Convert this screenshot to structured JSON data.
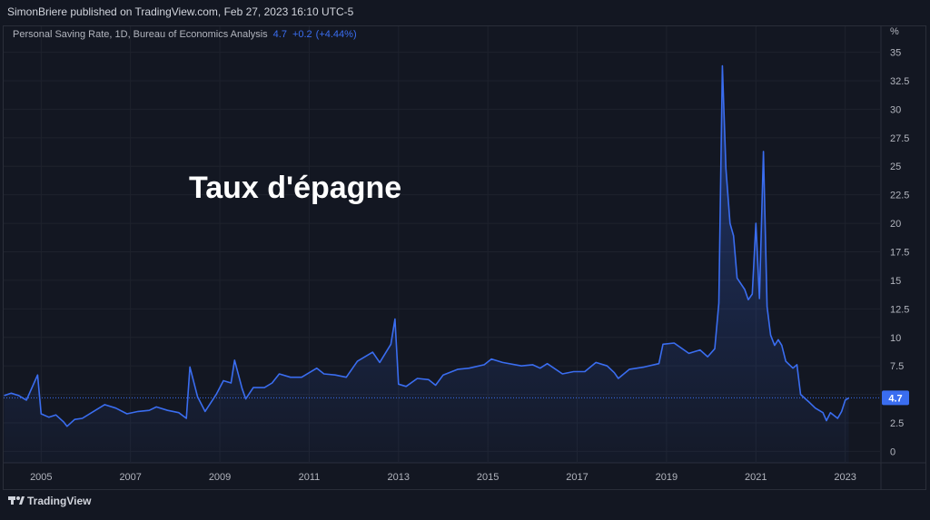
{
  "header": {
    "publisher": "SimonBriere published on TradingView.com, Feb 27, 2023 16:10 UTC-5"
  },
  "footer": {
    "brand": "TradingView"
  },
  "chart_data": {
    "type": "line",
    "legend_title": "Personal Saving Rate, 1D, Bureau of Economics Analysis",
    "legend_value": "4.7",
    "legend_change": "+0.2",
    "legend_change_pct": "(+4.44%)",
    "annotation": "Taux d'épagne",
    "y_unit": "%",
    "last_value": 4.7,
    "color": "#3a6df0",
    "grid": true,
    "xlim": [
      2004.16,
      2023.8
    ],
    "ylim": [
      -1,
      36
    ],
    "xticks": [
      2005,
      2007,
      2009,
      2011,
      2013,
      2015,
      2017,
      2019,
      2021,
      2023
    ],
    "yticks": [
      0,
      2.5,
      5,
      7.5,
      10,
      12.5,
      15,
      17.5,
      20,
      22.5,
      25,
      27.5,
      30,
      32.5,
      35
    ],
    "x": [
      2004.17,
      2004.33,
      2004.5,
      2004.67,
      2004.92,
      2005.0,
      2005.17,
      2005.33,
      2005.5,
      2005.58,
      2005.75,
      2005.92,
      2006.17,
      2006.42,
      2006.67,
      2006.92,
      2007.17,
      2007.42,
      2007.58,
      2007.83,
      2008.08,
      2008.25,
      2008.33,
      2008.5,
      2008.67,
      2008.92,
      2009.08,
      2009.25,
      2009.33,
      2009.5,
      2009.58,
      2009.75,
      2010.0,
      2010.17,
      2010.33,
      2010.58,
      2010.83,
      2011.17,
      2011.33,
      2011.58,
      2011.83,
      2012.08,
      2012.42,
      2012.58,
      2012.83,
      2012.92,
      2013.0,
      2013.17,
      2013.42,
      2013.67,
      2013.83,
      2014.0,
      2014.33,
      2014.58,
      2014.92,
      2015.08,
      2015.33,
      2015.75,
      2016.0,
      2016.17,
      2016.33,
      2016.67,
      2016.92,
      2017.17,
      2017.42,
      2017.67,
      2017.83,
      2017.92,
      2018.17,
      2018.5,
      2018.83,
      2018.92,
      2019.17,
      2019.5,
      2019.75,
      2019.92,
      2020.08,
      2020.17,
      2020.25,
      2020.33,
      2020.42,
      2020.5,
      2020.58,
      2020.75,
      2020.83,
      2020.92,
      2021.0,
      2021.08,
      2021.17,
      2021.25,
      2021.33,
      2021.42,
      2021.5,
      2021.58,
      2021.67,
      2021.83,
      2021.92,
      2022.0,
      2022.17,
      2022.33,
      2022.5,
      2022.58,
      2022.67,
      2022.83,
      2022.92,
      2023.0,
      2023.08
    ],
    "values": [
      4.9,
      5.1,
      4.9,
      4.5,
      6.7,
      3.3,
      3.0,
      3.2,
      2.6,
      2.2,
      2.8,
      2.9,
      3.5,
      4.1,
      3.8,
      3.3,
      3.5,
      3.6,
      3.9,
      3.6,
      3.4,
      2.9,
      7.4,
      4.8,
      3.5,
      5.0,
      6.2,
      6.0,
      8.0,
      5.5,
      4.6,
      5.6,
      5.6,
      6.0,
      6.8,
      6.5,
      6.5,
      7.3,
      6.8,
      6.7,
      6.5,
      7.9,
      8.7,
      7.8,
      9.4,
      11.6,
      5.9,
      5.7,
      6.4,
      6.3,
      5.8,
      6.7,
      7.2,
      7.3,
      7.6,
      8.1,
      7.8,
      7.5,
      7.6,
      7.3,
      7.7,
      6.8,
      7.0,
      7.0,
      7.8,
      7.5,
      6.9,
      6.4,
      7.2,
      7.4,
      7.7,
      9.4,
      9.5,
      8.6,
      8.9,
      8.3,
      9.0,
      13.0,
      33.8,
      24.8,
      20.0,
      18.9,
      15.2,
      14.2,
      13.3,
      13.8,
      20.0,
      13.4,
      26.3,
      12.7,
      10.2,
      9.3,
      9.8,
      9.3,
      7.9,
      7.3,
      7.6,
      5.0,
      4.4,
      3.8,
      3.4,
      2.7,
      3.4,
      2.9,
      3.5,
      4.5,
      4.7
    ]
  }
}
